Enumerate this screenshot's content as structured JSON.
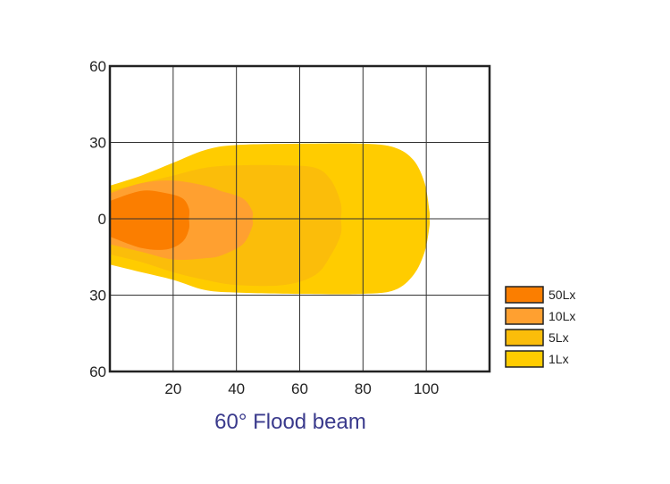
{
  "chart_data": {
    "type": "area",
    "title": "",
    "caption": "60°  Flood beam",
    "xlabel": "",
    "ylabel": "",
    "xlim": [
      0,
      120
    ],
    "ylim": [
      -60,
      60
    ],
    "x_ticks": [
      20,
      40,
      60,
      80,
      100
    ],
    "y_ticks": [
      {
        "value": 60,
        "label": "60"
      },
      {
        "value": 30,
        "label": "30"
      },
      {
        "value": 0,
        "label": "0"
      },
      {
        "value": -30,
        "label": "30"
      },
      {
        "value": -60,
        "label": "60"
      }
    ],
    "grid": true,
    "legend_position": "right",
    "series": [
      {
        "name": "1Lx",
        "color": "#ffcc00",
        "upper": [
          [
            0,
            13
          ],
          [
            10,
            17
          ],
          [
            20,
            22
          ],
          [
            30,
            27
          ],
          [
            40,
            29
          ],
          [
            60,
            29.5
          ],
          [
            80,
            29.5
          ],
          [
            90,
            28
          ],
          [
            96,
            23
          ],
          [
            99.5,
            14
          ],
          [
            101,
            3
          ],
          [
            101,
            0
          ]
        ],
        "lower": [
          [
            0,
            -18
          ],
          [
            10,
            -21
          ],
          [
            20,
            -24
          ],
          [
            30,
            -28
          ],
          [
            40,
            -29
          ],
          [
            60,
            -29.5
          ],
          [
            80,
            -29.5
          ],
          [
            90,
            -28
          ],
          [
            96,
            -22
          ],
          [
            99.5,
            -13
          ],
          [
            101,
            -3
          ],
          [
            101,
            0
          ]
        ]
      },
      {
        "name": "5Lx",
        "color": "#fbbd0a",
        "upper": [
          [
            0,
            11
          ],
          [
            10,
            14
          ],
          [
            20,
            17
          ],
          [
            30,
            20
          ],
          [
            40,
            21
          ],
          [
            55,
            21
          ],
          [
            65,
            20
          ],
          [
            70,
            15
          ],
          [
            73,
            6
          ],
          [
            73,
            0
          ]
        ],
        "lower": [
          [
            0,
            -14
          ],
          [
            10,
            -17
          ],
          [
            20,
            -21
          ],
          [
            30,
            -24
          ],
          [
            40,
            -26
          ],
          [
            55,
            -26
          ],
          [
            65,
            -22
          ],
          [
            70,
            -14
          ],
          [
            73,
            -6
          ],
          [
            73,
            0
          ]
        ]
      },
      {
        "name": "10Lx",
        "color": "#ffa030",
        "upper": [
          [
            0,
            10
          ],
          [
            10,
            14
          ],
          [
            20,
            15
          ],
          [
            30,
            13
          ],
          [
            35,
            11
          ],
          [
            42,
            8
          ],
          [
            45,
            3
          ],
          [
            45,
            0
          ]
        ],
        "lower": [
          [
            0,
            -10
          ],
          [
            10,
            -13
          ],
          [
            20,
            -16
          ],
          [
            30,
            -15.5
          ],
          [
            35,
            -14.5
          ],
          [
            42,
            -10
          ],
          [
            45,
            -3
          ],
          [
            45,
            0
          ]
        ]
      },
      {
        "name": "50Lx",
        "color": "#fb7e00",
        "upper": [
          [
            0,
            7
          ],
          [
            10,
            11
          ],
          [
            18,
            10
          ],
          [
            23,
            8
          ],
          [
            25,
            4
          ],
          [
            25,
            0
          ]
        ],
        "lower": [
          [
            0,
            -7
          ],
          [
            10,
            -11.5
          ],
          [
            18,
            -12
          ],
          [
            23,
            -9
          ],
          [
            25,
            -4
          ],
          [
            25,
            0
          ]
        ]
      }
    ],
    "legend": [
      {
        "label": "50Lx",
        "color": "#fb7e00"
      },
      {
        "label": "10Lx",
        "color": "#ffa030"
      },
      {
        "label": "5Lx",
        "color": "#fbbd0a"
      },
      {
        "label": "1Lx",
        "color": "#ffcc00"
      }
    ]
  }
}
